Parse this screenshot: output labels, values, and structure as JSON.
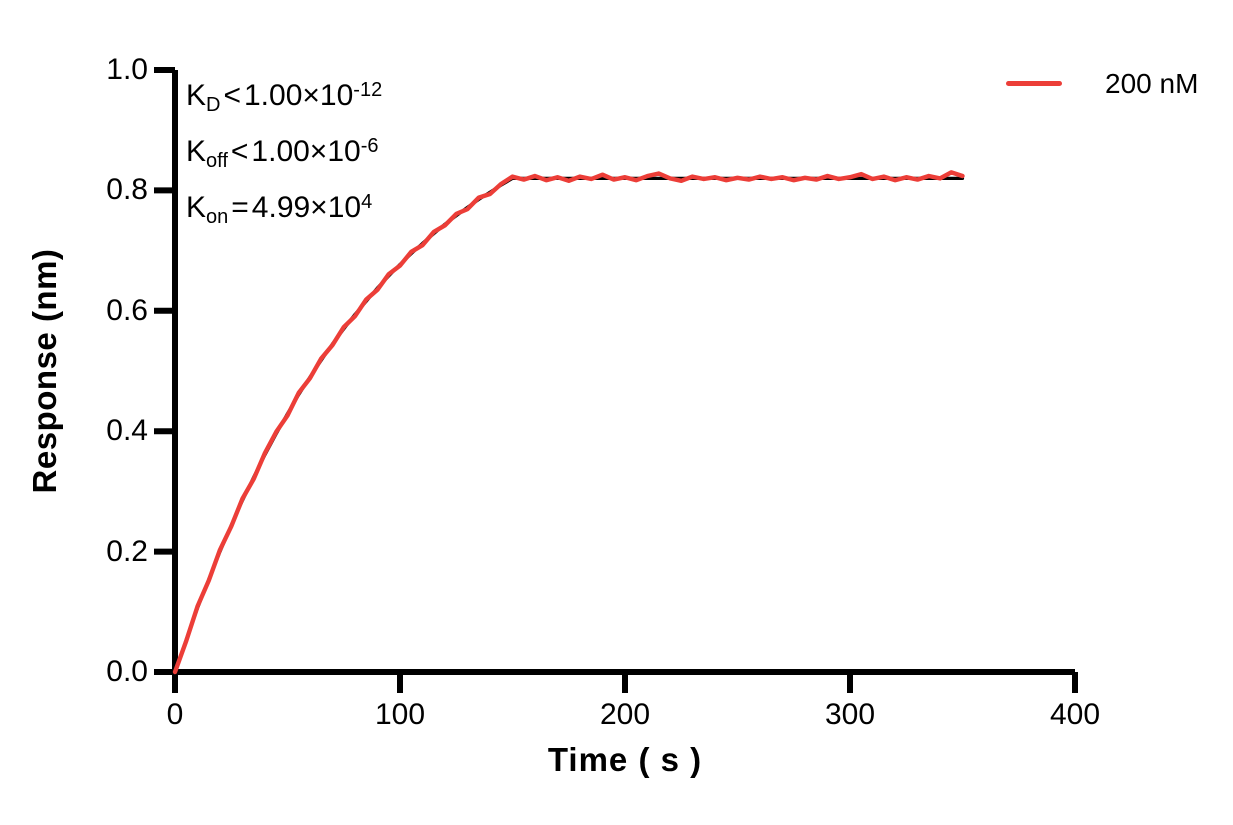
{
  "figure": {
    "background": "#ffffff"
  },
  "colors": {
    "axis": "#000000",
    "fit_line": "#000000",
    "data_line": "#ec3e38"
  },
  "axes": {
    "x": {
      "title": "Time ( s )",
      "labels": [
        "0",
        "100",
        "200",
        "300",
        "400"
      ]
    },
    "y": {
      "title": "Response (nm)",
      "labels": [
        "1.0",
        "0.8",
        "0.6",
        "0.4",
        "0.2",
        "0.0"
      ]
    }
  },
  "annotations": {
    "lines": [
      {
        "k": "K",
        "sub": "D",
        "cmp": "<",
        "coeff": "1.00×10",
        "exp": "-12"
      },
      {
        "k": "K",
        "sub": "off",
        "cmp": "<",
        "coeff": "1.00×10",
        "exp": "-6"
      },
      {
        "k": "K",
        "sub": "on",
        "cmp": "=",
        "coeff": "4.99×10",
        "exp": "4"
      }
    ]
  },
  "legend": {
    "label": "200 nM",
    "color": "#ec3e38",
    "position": "top-right"
  },
  "chart_data": {
    "type": "line",
    "title": "",
    "xlabel": "Time ( s )",
    "ylabel": "Response (nm)",
    "xlim": [
      0,
      400
    ],
    "ylim": [
      0,
      1.0
    ],
    "xticks": [
      0,
      100,
      200,
      300,
      400
    ],
    "yticks": [
      0,
      0.2,
      0.4,
      0.6,
      0.8,
      1.0
    ],
    "grid": false,
    "legend_position": "top-right",
    "annotations_text": [
      "KD<1.00×10-12",
      "Koff<1.00×10-6",
      "Kon=4.99×104"
    ],
    "series": [
      {
        "name": "fit",
        "color": "#000000",
        "stroke_width": 3.2,
        "points": [
          [
            0,
            0.0
          ],
          [
            5,
            0.054
          ],
          [
            10,
            0.106
          ],
          [
            15,
            0.154
          ],
          [
            20,
            0.2
          ],
          [
            25,
            0.244
          ],
          [
            30,
            0.285
          ],
          [
            35,
            0.324
          ],
          [
            40,
            0.361
          ],
          [
            45,
            0.396
          ],
          [
            50,
            0.429
          ],
          [
            55,
            0.461
          ],
          [
            60,
            0.49
          ],
          [
            65,
            0.518
          ],
          [
            70,
            0.545
          ],
          [
            75,
            0.57
          ],
          [
            80,
            0.594
          ],
          [
            85,
            0.616
          ],
          [
            90,
            0.638
          ],
          [
            95,
            0.658
          ],
          [
            100,
            0.677
          ],
          [
            105,
            0.695
          ],
          [
            110,
            0.712
          ],
          [
            115,
            0.728
          ],
          [
            120,
            0.744
          ],
          [
            125,
            0.758
          ],
          [
            130,
            0.772
          ],
          [
            135,
            0.785
          ],
          [
            140,
            0.797
          ],
          [
            145,
            0.809
          ],
          [
            150,
            0.82
          ],
          [
            350,
            0.82
          ]
        ]
      },
      {
        "name": "200 nM",
        "color": "#ec3e38",
        "stroke_width": 4.4,
        "points": [
          [
            0,
            0.0
          ],
          [
            5,
            0.052
          ],
          [
            10,
            0.109
          ],
          [
            15,
            0.152
          ],
          [
            20,
            0.203
          ],
          [
            25,
            0.242
          ],
          [
            30,
            0.288
          ],
          [
            35,
            0.321
          ],
          [
            40,
            0.364
          ],
          [
            45,
            0.399
          ],
          [
            50,
            0.426
          ],
          [
            55,
            0.464
          ],
          [
            60,
            0.488
          ],
          [
            65,
            0.521
          ],
          [
            70,
            0.543
          ],
          [
            75,
            0.573
          ],
          [
            80,
            0.591
          ],
          [
            85,
            0.619
          ],
          [
            90,
            0.635
          ],
          [
            95,
            0.661
          ],
          [
            100,
            0.675
          ],
          [
            105,
            0.698
          ],
          [
            110,
            0.709
          ],
          [
            115,
            0.731
          ],
          [
            120,
            0.742
          ],
          [
            125,
            0.761
          ],
          [
            130,
            0.769
          ],
          [
            135,
            0.788
          ],
          [
            140,
            0.794
          ],
          [
            145,
            0.811
          ],
          [
            150,
            0.823
          ],
          [
            155,
            0.818
          ],
          [
            160,
            0.824
          ],
          [
            165,
            0.817
          ],
          [
            170,
            0.822
          ],
          [
            175,
            0.816
          ],
          [
            180,
            0.823
          ],
          [
            185,
            0.819
          ],
          [
            190,
            0.826
          ],
          [
            195,
            0.818
          ],
          [
            200,
            0.822
          ],
          [
            205,
            0.817
          ],
          [
            210,
            0.824
          ],
          [
            215,
            0.828
          ],
          [
            220,
            0.82
          ],
          [
            225,
            0.816
          ],
          [
            230,
            0.823
          ],
          [
            235,
            0.819
          ],
          [
            240,
            0.822
          ],
          [
            245,
            0.817
          ],
          [
            250,
            0.821
          ],
          [
            255,
            0.818
          ],
          [
            260,
            0.823
          ],
          [
            265,
            0.819
          ],
          [
            270,
            0.822
          ],
          [
            275,
            0.817
          ],
          [
            280,
            0.821
          ],
          [
            285,
            0.818
          ],
          [
            290,
            0.824
          ],
          [
            295,
            0.819
          ],
          [
            300,
            0.822
          ],
          [
            305,
            0.827
          ],
          [
            310,
            0.819
          ],
          [
            315,
            0.823
          ],
          [
            320,
            0.817
          ],
          [
            325,
            0.822
          ],
          [
            330,
            0.818
          ],
          [
            335,
            0.824
          ],
          [
            340,
            0.82
          ],
          [
            345,
            0.83
          ],
          [
            350,
            0.824
          ]
        ]
      }
    ]
  }
}
